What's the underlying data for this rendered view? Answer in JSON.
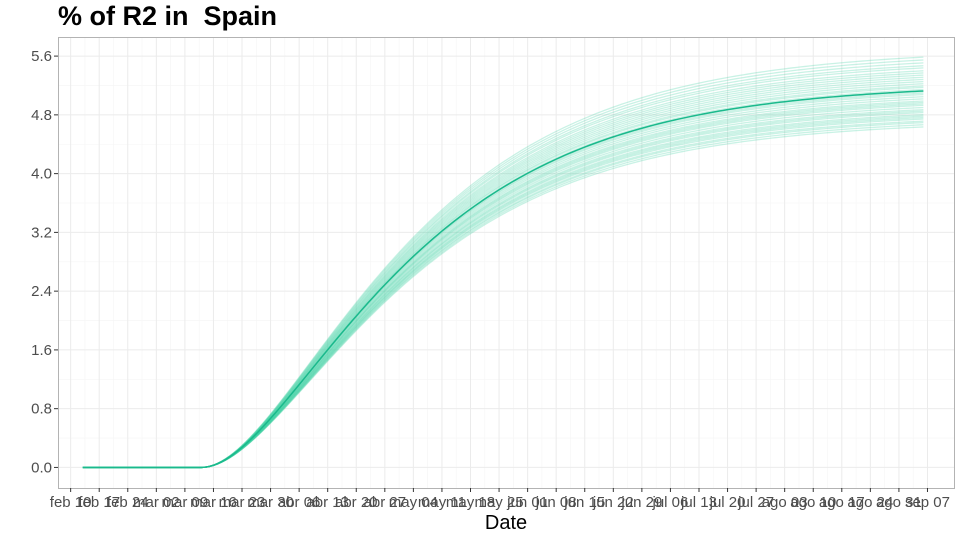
{
  "chart_data": {
    "type": "line",
    "title": "% of R2 in  Spain",
    "xlabel": "Date",
    "ylabel": "",
    "ylim": [
      -0.28,
      5.86
    ],
    "yticks": [
      0.0,
      0.8,
      1.6,
      2.4,
      3.2,
      4.0,
      4.8,
      5.6
    ],
    "ytick_labels": [
      "0.0",
      "0.8",
      "1.6",
      "2.4",
      "3.2",
      "4.0",
      "4.8",
      "5.6"
    ],
    "xlim": [
      -3.1,
      216.5
    ],
    "xticks": [
      0,
      7,
      14,
      21,
      28,
      35,
      42,
      49,
      56,
      63,
      70,
      77,
      84,
      91,
      98,
      105,
      112,
      119,
      126,
      133,
      140,
      147,
      154,
      161,
      168,
      175,
      182,
      189,
      196,
      203,
      210
    ],
    "xtick_labels": [
      "feb 10",
      "feb 17",
      "feb 24",
      "mar 02",
      "mar 09",
      "mar 16",
      "mar 23",
      "mar 30",
      "abr 06",
      "abr 13",
      "abr 20",
      "abr 27",
      "may 04",
      "may 11",
      "may 18",
      "may 25",
      "jun 01",
      "jun 08",
      "jun 15",
      "jun 22",
      "jun 29",
      "jul 06",
      "jul 13",
      "jul 20",
      "jul 27",
      "ago 03",
      "ago 10",
      "ago 17",
      "ago 24",
      "ago 31",
      "sep 07"
    ],
    "grid": true,
    "x_start": 3,
    "x_end": 209,
    "curve_model": {
      "onset": 32,
      "rate": 0.026
    },
    "mean_series": {
      "name": "",
      "plateau": 5.23,
      "color": "#1ab98c"
    },
    "ensemble_plateaus": [
      4.73,
      4.76,
      4.79,
      4.81,
      4.84,
      4.86,
      4.88,
      4.9,
      4.93,
      4.95,
      4.97,
      5.0,
      5.03,
      5.05,
      5.07,
      5.09,
      5.12,
      5.15,
      5.18,
      5.2,
      5.22,
      5.25,
      5.28,
      5.3,
      5.33,
      5.36,
      5.39,
      5.42,
      5.45,
      5.48,
      5.51,
      5.55,
      5.58,
      5.62,
      5.66,
      5.7
    ],
    "ensemble_color": "#3ccfa2"
  },
  "colors": {
    "panel_border": "#b3b3b3",
    "grid_major": "#ebebeb",
    "grid_minor": "#f5f5f5"
  }
}
